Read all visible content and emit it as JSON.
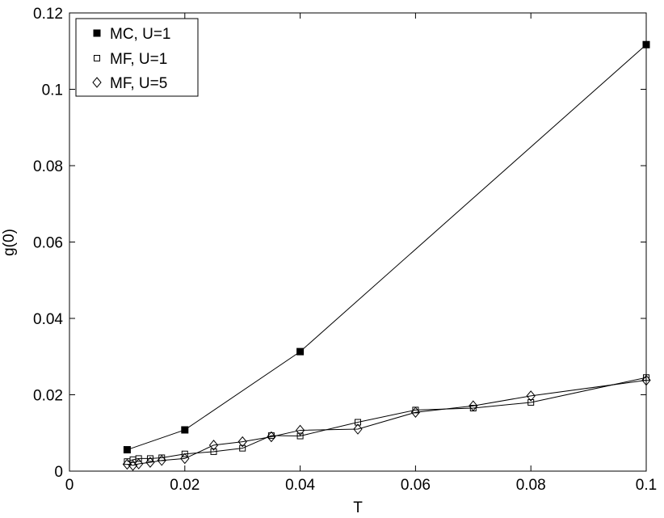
{
  "chart_data": {
    "type": "line",
    "title": "",
    "xlabel": "T",
    "ylabel": "g(0)",
    "xlim": [
      0,
      0.1
    ],
    "ylim": [
      0,
      0.12
    ],
    "grid": false,
    "legend_position": "top-left",
    "xticks": [
      0,
      0.02,
      0.04,
      0.06,
      0.08,
      0.1
    ],
    "xtick_labels": [
      "0",
      "0.02",
      "0.04",
      "0.06",
      "0.08",
      "0.1"
    ],
    "yticks": [
      0,
      0.02,
      0.04,
      0.06,
      0.08,
      0.1,
      0.12
    ],
    "ytick_labels": [
      "0",
      "0.02",
      "0.04",
      "0.06",
      "0.08",
      "0.1",
      "0.12"
    ],
    "series": [
      {
        "name": "MC, U=1",
        "marker": "filled-square",
        "x": [
          0.01,
          0.02,
          0.04,
          0.1
        ],
        "y": [
          0.0056,
          0.0108,
          0.0313,
          0.1117
        ]
      },
      {
        "name": "MF, U=1",
        "marker": "open-square",
        "x": [
          0.01,
          0.011,
          0.012,
          0.014,
          0.016,
          0.02,
          0.025,
          0.03,
          0.035,
          0.04,
          0.05,
          0.06,
          0.07,
          0.08,
          0.1
        ],
        "y": [
          0.0025,
          0.003,
          0.0033,
          0.0033,
          0.0035,
          0.0045,
          0.0051,
          0.006,
          0.0093,
          0.0092,
          0.0128,
          0.016,
          0.0165,
          0.018,
          0.0245
        ]
      },
      {
        "name": "MF, U=5",
        "marker": "open-diamond",
        "x": [
          0.01,
          0.011,
          0.012,
          0.014,
          0.016,
          0.02,
          0.025,
          0.03,
          0.035,
          0.04,
          0.05,
          0.06,
          0.07,
          0.08,
          0.1
        ],
        "y": [
          0.0018,
          0.0015,
          0.0019,
          0.0023,
          0.0028,
          0.0033,
          0.0068,
          0.0077,
          0.009,
          0.0107,
          0.011,
          0.0154,
          0.0171,
          0.0197,
          0.0238
        ]
      }
    ]
  }
}
